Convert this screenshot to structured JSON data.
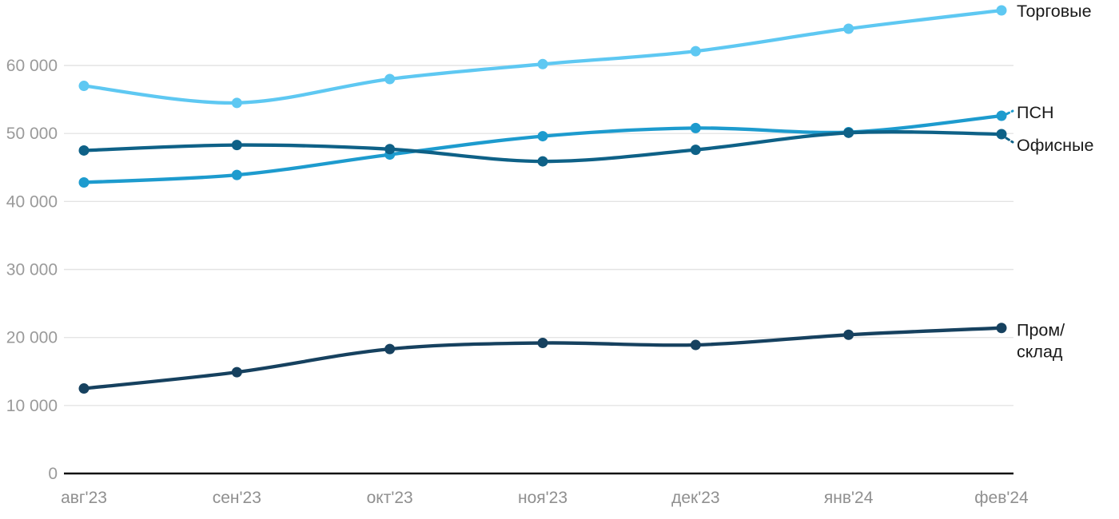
{
  "chart_data": {
    "type": "line",
    "title": "",
    "xlabel": "",
    "ylabel": "",
    "x": [
      "авг'23",
      "сен'23",
      "окт'23",
      "ноя'23",
      "дек'23",
      "янв'24",
      "фев'24"
    ],
    "series": [
      {
        "id": "torgovye",
        "name": "Торговые",
        "color": "#5ec8f2",
        "values": [
          57000,
          54500,
          58000,
          60200,
          62100,
          65400,
          68100
        ]
      },
      {
        "id": "psn",
        "name": "ПСН",
        "color": "#1d9bce",
        "values": [
          42800,
          43900,
          46900,
          49600,
          50800,
          50200,
          52600
        ]
      },
      {
        "id": "ofisnye",
        "name": "Офисные",
        "color": "#0e6187",
        "values": [
          47500,
          48300,
          47700,
          45900,
          47600,
          50100,
          49900
        ]
      },
      {
        "id": "prom-sklad",
        "name": "Пром/склад",
        "color": "#16415f",
        "values": [
          12500,
          14900,
          18300,
          19200,
          18900,
          20400,
          21400
        ]
      }
    ],
    "ylim": [
      0,
      70000
    ],
    "yticks": [
      {
        "value": 0,
        "label": "0"
      },
      {
        "value": 10000,
        "label": "10 000"
      },
      {
        "value": 20000,
        "label": "20 000"
      },
      {
        "value": 30000,
        "label": "30 000"
      },
      {
        "value": 40000,
        "label": "40 000"
      },
      {
        "value": 50000,
        "label": "50 000"
      },
      {
        "value": 60000,
        "label": "60 000"
      }
    ],
    "grid": true,
    "legend_position": "right-inline-labels",
    "colors": {
      "gridline": "#e4e4e4",
      "axis_line": "#111111",
      "tick_text": "#9a9a9a",
      "label_text": "#1a1a1a",
      "background": "#ffffff"
    }
  }
}
